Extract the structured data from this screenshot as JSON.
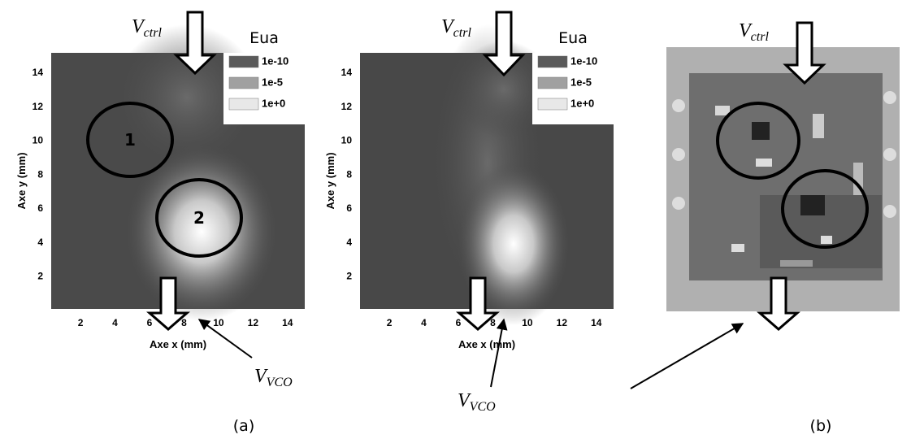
{
  "panels": [
    {
      "legend": {
        "title": "Eua",
        "entries": [
          "1e-10",
          "1e-5",
          "1e+0"
        ]
      },
      "x_axis_label": "Axe x (mm)",
      "y_axis_label": "Axe y (mm)",
      "xlim": [
        0.3,
        15
      ],
      "ylim": [
        0.1,
        15.2
      ],
      "xticks": [
        2,
        4,
        6,
        8,
        10,
        12,
        14
      ],
      "yticks": [
        2,
        4,
        6,
        8,
        10,
        12,
        14
      ],
      "circle_labels": [
        "1",
        "2"
      ]
    },
    {
      "legend": {
        "title": "Eua",
        "entries": [
          "1e-10",
          "1e-5",
          "1e+0"
        ]
      },
      "x_axis_label": "Axe x (mm)",
      "y_axis_label": "Axe y (mm)",
      "xlim": [
        0.3,
        15
      ],
      "ylim": [
        0.1,
        15.2
      ],
      "xticks": [
        2,
        4,
        6,
        8,
        10,
        12,
        14
      ],
      "yticks": [
        2,
        4,
        6,
        8,
        10,
        12,
        14
      ]
    }
  ],
  "v_ctrl": [
    {
      "base": "V",
      "sub": "ctrl"
    },
    {
      "base": "V",
      "sub": "ctrl"
    },
    {
      "base": "V",
      "sub": "ctrl"
    }
  ],
  "v_vco": [
    {
      "base": "V",
      "sub": "VCO"
    },
    {
      "base": "V",
      "sub": "VCO"
    }
  ],
  "captions": [
    "(a)",
    "(b)"
  ]
}
